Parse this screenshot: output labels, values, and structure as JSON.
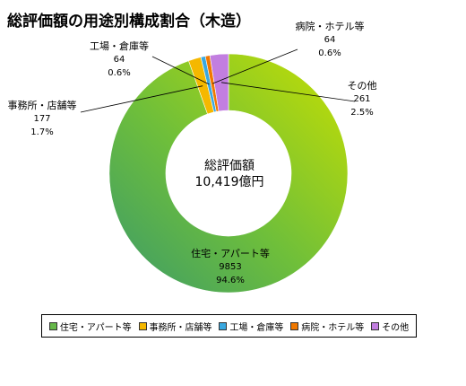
{
  "chart_data": {
    "type": "pie",
    "variant": "donut",
    "title": "総評価額の用途別構成割合（木造）",
    "center_label": {
      "line1": "総評価額",
      "line2": "10,419億円"
    },
    "slices": [
      {
        "name": "住宅・アパート等",
        "value": 9853,
        "percent": "94.6%",
        "color": "#66b84a"
      },
      {
        "name": "事務所・店舗等",
        "value": 177,
        "percent": "1.7%",
        "color": "#f5b800"
      },
      {
        "name": "工場・倉庫等",
        "value": 64,
        "percent": "0.6%",
        "color": "#3aa8e0"
      },
      {
        "name": "病院・ホテル等",
        "value": 64,
        "percent": "0.6%",
        "color": "#f07800"
      },
      {
        "name": "その他",
        "value": 261,
        "percent": "2.5%",
        "color": "#c27ee0"
      }
    ],
    "legend_position": "bottom"
  }
}
